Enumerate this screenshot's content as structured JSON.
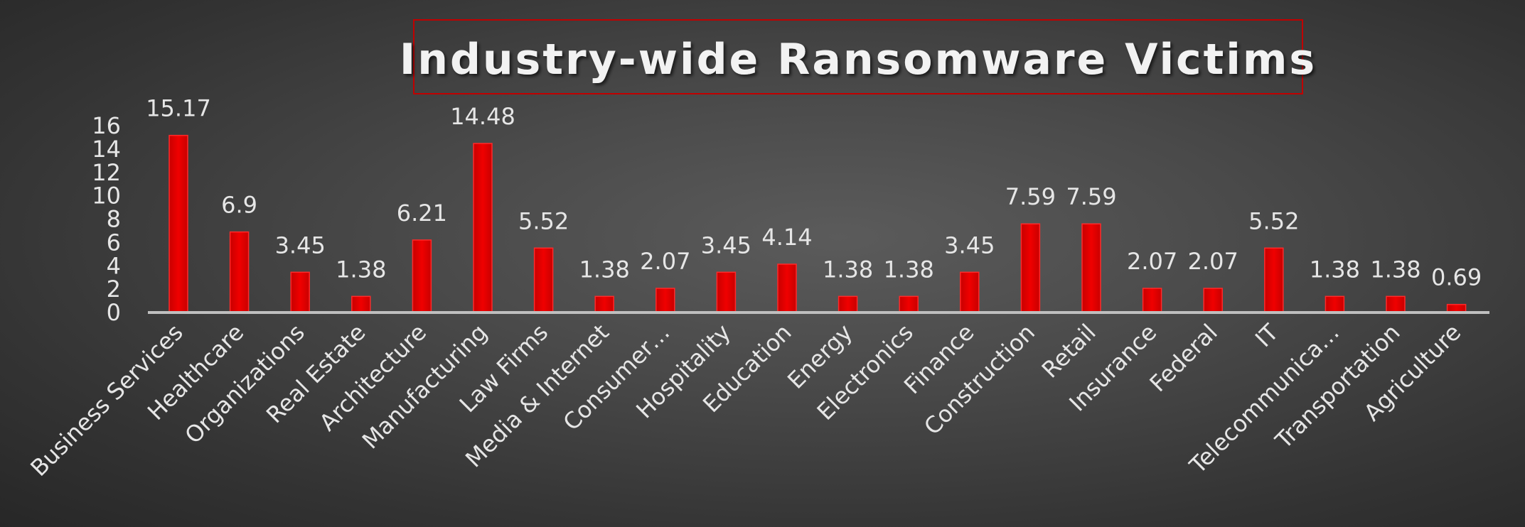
{
  "chart_data": {
    "type": "bar",
    "title": "Industry-wide Ransomware Victims",
    "xlabel": "",
    "ylabel": "",
    "ylim": [
      0,
      16
    ],
    "yticks": [
      "0",
      "2",
      "4",
      "6",
      "8",
      "10",
      "12",
      "14",
      "16"
    ],
    "grid": false,
    "legend": "none",
    "bar_color": "#e00000",
    "categories": [
      "Business Services",
      "Healthcare",
      "Organizations",
      "Real Estate",
      "Architecture",
      "Manufacturing",
      "Law Firms",
      "Media & Internet",
      "Consumer…",
      "Hospitality",
      "Education",
      "Energy",
      "Electronics",
      "Finance",
      "Construction",
      "Retail",
      "Insurance",
      "Federal",
      "IT",
      "Telecommunica…",
      "Transportation",
      "Agriculture"
    ],
    "values": [
      15.17,
      6.9,
      3.45,
      1.38,
      6.21,
      14.48,
      5.52,
      1.38,
      2.07,
      3.45,
      4.14,
      1.38,
      1.38,
      3.45,
      7.59,
      7.59,
      2.07,
      2.07,
      5.52,
      1.38,
      1.38,
      0.69
    ],
    "data_labels": [
      "15.17",
      "6.9",
      "3.45",
      "1.38",
      "6.21",
      "14.48",
      "5.52",
      "1.38",
      "2.07",
      "3.45",
      "4.14",
      "1.38",
      "1.38",
      "3.45",
      "7.59",
      "7.59",
      "2.07",
      "2.07",
      "5.52",
      "1.38",
      "1.38",
      "0.69"
    ]
  }
}
